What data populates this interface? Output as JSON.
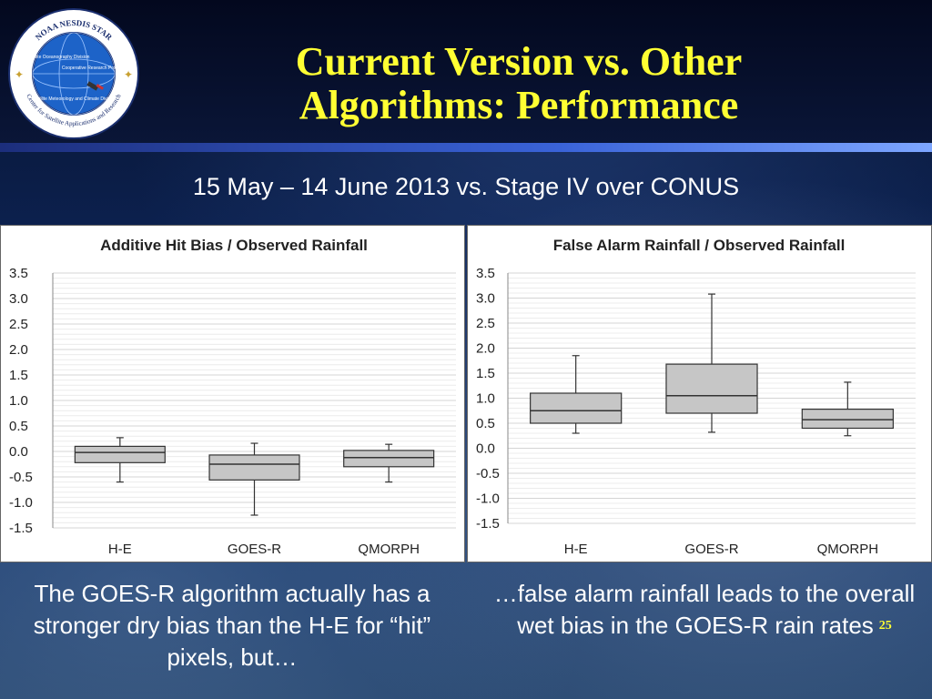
{
  "slide": {
    "title_line1": "Current Version vs. Other",
    "title_line2": "Algorithms: Performance",
    "subtitle": "15 May – 14 June 2013 vs. Stage IV over CONUS",
    "caption_left": "The GOES-R algorithm actually has a stronger dry bias than the H-E for “hit” pixels, but…",
    "caption_right": "…false alarm rainfall leads to the overall wet bias in the GOES-R rain rates",
    "page_number": "25"
  },
  "logo": {
    "ring_top": "NOAA NESDIS STAR",
    "ring_bottom": "Center for Satellite Applications and Research",
    "division1": "Satellite Oceanography Division",
    "division2": "Cooperative Research Program",
    "division3": "Satellite Meteorology and Climate Division"
  },
  "chart_data": [
    {
      "type": "box",
      "title": "Additive Hit Bias / Observed Rainfall",
      "categories": [
        "H-E",
        "GOES-R",
        "QMORPH"
      ],
      "ylim": [
        -1.5,
        3.5
      ],
      "yticks": [
        "3.5",
        "3.0",
        "2.5",
        "2.0",
        "1.5",
        "1.0",
        "0.5",
        "0.0",
        "-0.5",
        "-1.0",
        "-1.5"
      ],
      "boxes": [
        {
          "min": -0.6,
          "q1": -0.22,
          "median": -0.02,
          "q3": 0.1,
          "max": 0.27
        },
        {
          "min": -1.25,
          "q1": -0.56,
          "median": -0.25,
          "q3": -0.07,
          "max": 0.16
        },
        {
          "min": -0.6,
          "q1": -0.3,
          "median": -0.12,
          "q3": 0.02,
          "max": 0.14
        }
      ],
      "grid": true,
      "legend": "none"
    },
    {
      "type": "box",
      "title": "False Alarm Rainfall / Observed Rainfall",
      "categories": [
        "H-E",
        "GOES-R",
        "QMORPH"
      ],
      "ylim": [
        -1.5,
        3.5
      ],
      "yticks": [
        "3.5",
        "3.0",
        "2.5",
        "2.0",
        "1.5",
        "1.0",
        "0.5",
        "0.0",
        "-0.5",
        "-1.0",
        "-1.5"
      ],
      "boxes": [
        {
          "min": 0.3,
          "q1": 0.5,
          "median": 0.75,
          "q3": 1.1,
          "max": 1.85
        },
        {
          "min": 0.32,
          "q1": 0.7,
          "median": 1.05,
          "q3": 1.68,
          "max": 3.08
        },
        {
          "min": 0.25,
          "q1": 0.4,
          "median": 0.57,
          "q3": 0.78,
          "max": 1.32
        }
      ],
      "grid": true,
      "legend": "none"
    }
  ]
}
